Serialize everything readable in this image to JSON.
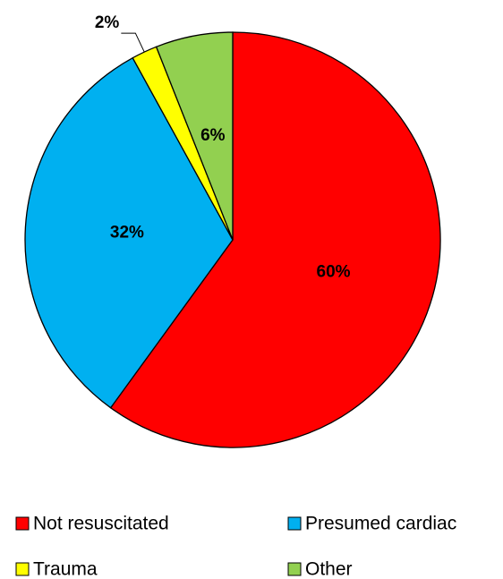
{
  "chart_data": {
    "type": "pie",
    "categories": [
      "Not resuscitated",
      "Presumed cardiac",
      "Trauma",
      "Other"
    ],
    "values": [
      60,
      32,
      2,
      6
    ],
    "value_labels": [
      "60%",
      "32%",
      "2%",
      "6%"
    ],
    "colors": [
      "#ff0000",
      "#00b0f0",
      "#ffff00",
      "#92d050"
    ],
    "legend": "bottom"
  }
}
